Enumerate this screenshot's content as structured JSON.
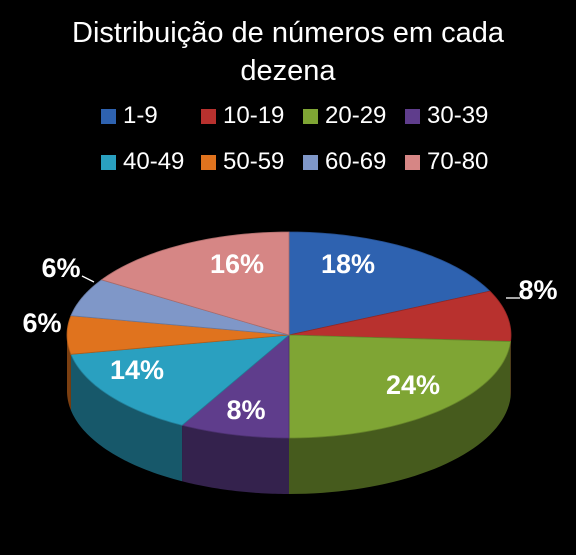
{
  "chart_data": {
    "type": "pie",
    "title": "Distribuição de números em cada dezena",
    "title_lines": [
      "Distribuição de números em cada",
      "dezena"
    ],
    "categories": [
      "1-9",
      "10-19",
      "20-29",
      "30-39",
      "40-49",
      "50-59",
      "60-69",
      "70-80"
    ],
    "values": [
      18,
      8,
      24,
      8,
      14,
      6,
      6,
      16
    ],
    "labels": [
      "18%",
      "8%",
      "24%",
      "8%",
      "14%",
      "6%",
      "6%",
      "16%"
    ],
    "colors": [
      "#2e62b0",
      "#b8312e",
      "#7fa534",
      "#5f3d8c",
      "#2aa0c0",
      "#e0731e",
      "#7f97c8",
      "#d68685"
    ],
    "legend_position": "top",
    "style": "3d-exploded-none"
  }
}
